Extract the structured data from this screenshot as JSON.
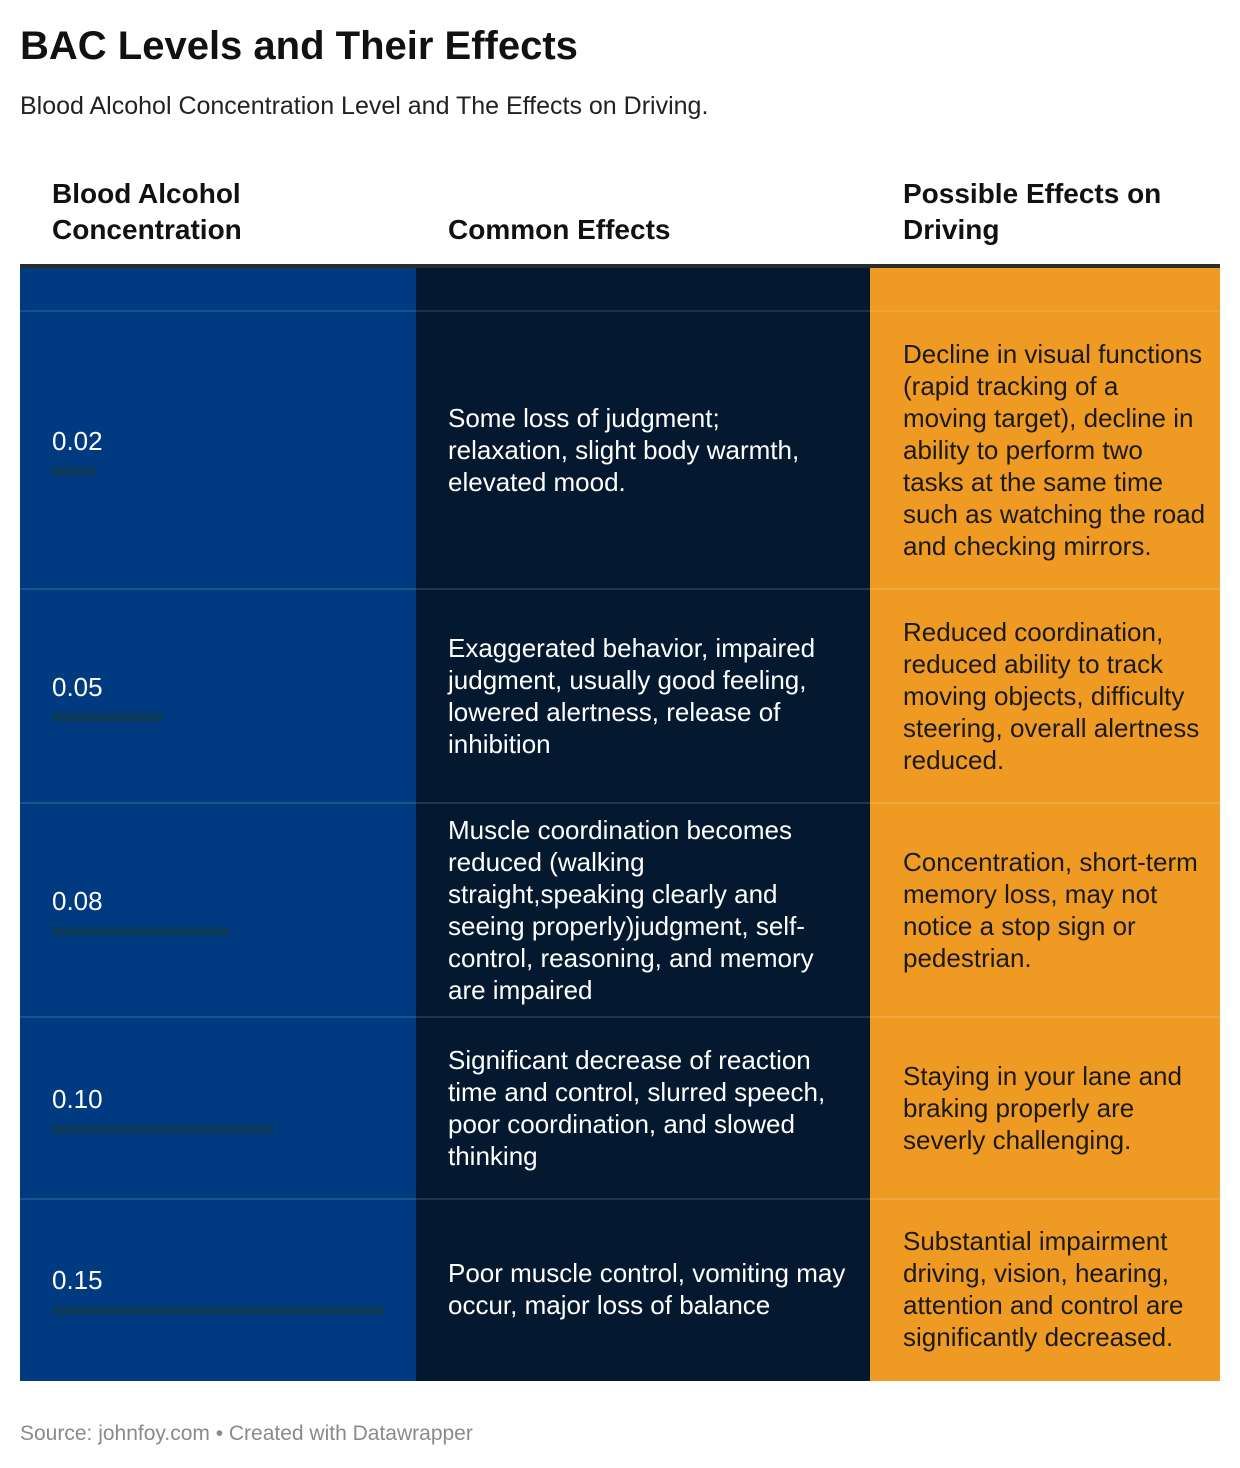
{
  "title": "BAC Levels and Their Effects",
  "subtitle": "Blood Alcohol Concentration Level and The Effects on Driving.",
  "headers": {
    "bac": [
      "Blood Alcohol",
      "Concentration"
    ],
    "common": "Common Effects",
    "driving": [
      "Possible Effects on",
      "Driving"
    ]
  },
  "colors": {
    "bac_column": "#003a80",
    "common_column": "#041930",
    "driving_column": "#ef9a22",
    "bar": "#0a3a5e"
  },
  "chart_data": {
    "type": "table",
    "columns": [
      "Blood Alcohol Concentration",
      "Common Effects",
      "Possible Effects on Driving"
    ],
    "bar_max": 0.15,
    "rows": [
      {
        "bac": "0.02",
        "bac_value": 0.02,
        "common": "Some loss of judgment; relaxation, slight body warmth, elevated mood.",
        "driving": "Decline in visual functions (rapid tracking of a moving target), decline in ability to perform two tasks at the same time such as watching the road and checking mirrors."
      },
      {
        "bac": "0.05",
        "bac_value": 0.05,
        "common": "Exaggerated behavior, impaired judgment, usually good feeling, lowered alertness, release of inhibition",
        "driving": "Reduced coordination, reduced ability to track moving objects, difficulty steering, overall alertness reduced."
      },
      {
        "bac": "0.08",
        "bac_value": 0.08,
        "common": "Muscle coordination becomes reduced (walking straight,speaking clearly and seeing properly)judgment, self-control, reasoning, and memory are impaired",
        "driving": "Concentration, short-term memory loss, may not notice a stop sign or pedestrian."
      },
      {
        "bac": "0.10",
        "bac_value": 0.1,
        "common": "Significant decrease of reaction time and control, slurred speech, poor coordination, and slowed thinking",
        "driving": "Staying in your lane and braking properly are severly challenging."
      },
      {
        "bac": "0.15",
        "bac_value": 0.15,
        "common": "Poor muscle control, vomiting may occur, major loss of balance",
        "driving": "Substantial impairment driving, vision, hearing, attention and control are significantly decreased."
      }
    ]
  },
  "footer": "Source: johnfoy.com • Created with Datawrapper"
}
